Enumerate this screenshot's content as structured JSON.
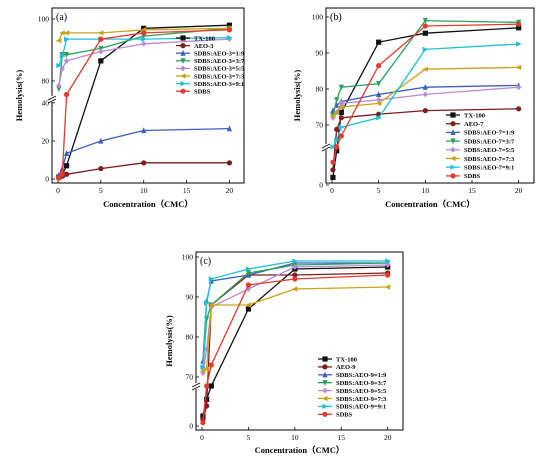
{
  "chart_data": [
    {
      "type": "line",
      "panel_label": "(a)",
      "xlabel": "Concentration（CMC）",
      "ylabel": "Hemolysis(%)",
      "xticks": [
        "0",
        "5",
        "10",
        "15",
        "20"
      ],
      "yticks": [
        "0",
        "20",
        "40",
        "80",
        "100"
      ],
      "ylim": [
        0,
        100
      ],
      "axis_break": [
        42,
        72
      ],
      "legend_position": "top-right",
      "x": [
        0.1,
        0.5,
        1,
        5,
        10,
        20
      ],
      "series": [
        {
          "name": "TX-100",
          "color": "#111111",
          "marker": "square",
          "values": [
            1,
            2,
            7,
            86.5,
            97,
            98
          ]
        },
        {
          "name": "AEO-3",
          "color": "#7a1e1e",
          "marker": "circle",
          "values": [
            1,
            1.5,
            2.5,
            5.5,
            8.5,
            8.5
          ]
        },
        {
          "name": "SDBS:AEO-3=1:9",
          "color": "#3a5fbf",
          "marker": "triangle-up",
          "values": [
            2,
            5.5,
            13.5,
            20,
            25.5,
            26.5
          ]
        },
        {
          "name": "SDBS:AEO-3=3:7",
          "color": "#2aa15a",
          "marker": "triangle-down",
          "values": [
            76.5,
            88.5,
            88.5,
            90.5,
            94.5,
            97
          ]
        },
        {
          "name": "SDBS:AEO-3=5:5",
          "color": "#b98ad8",
          "marker": "diamond",
          "values": [
            78,
            84,
            86.5,
            89.5,
            92,
            93.5
          ]
        },
        {
          "name": "SDBS:AEO-3=7:3",
          "color": "#c9a21a",
          "marker": "triangle-left",
          "values": [
            93,
            95.5,
            95.5,
            95.5,
            96.5,
            97
          ]
        },
        {
          "name": "SDBS:AEO-3=9:1",
          "color": "#1ec0d8",
          "marker": "triangle-right",
          "values": [
            85,
            88,
            93.5,
            93.5,
            93.5,
            94
          ]
        },
        {
          "name": "SDBS",
          "color": "#e23a2e",
          "marker": "circle",
          "values": [
            0.5,
            2.5,
            74,
            93.5,
            95.5,
            96.5
          ]
        }
      ]
    },
    {
      "type": "line",
      "panel_label": "(b)",
      "xlabel": "Concentration（CMC）",
      "ylabel": "Hemolysis(%)",
      "xticks": [
        "0",
        "5",
        "10",
        "15",
        "20"
      ],
      "yticks": [
        "0",
        "70",
        "80",
        "90",
        "100"
      ],
      "ylim": [
        0,
        100
      ],
      "axis_break": [
        5,
        65
      ],
      "legend_position": "bottom-right",
      "x": [
        0.1,
        0.5,
        1,
        5,
        10,
        20
      ],
      "series": [
        {
          "name": "TX-100",
          "color": "#111111",
          "marker": "square",
          "values": [
            1,
            4.5,
            73.5,
            93,
            95.5,
            97
          ]
        },
        {
          "name": "AEO-7",
          "color": "#7a1e1e",
          "marker": "circle",
          "values": [
            2,
            69,
            72,
            73,
            74,
            74.5
          ]
        },
        {
          "name": "SDBS:AEO-7=1:9",
          "color": "#3a5fbf",
          "marker": "triangle-up",
          "values": [
            74,
            75.5,
            76.5,
            78.5,
            80.5,
            81
          ]
        },
        {
          "name": "SDBS:AEO-7=3:7",
          "color": "#2aa15a",
          "marker": "triangle-down",
          "values": [
            72.5,
            77,
            80.5,
            81.5,
            99,
            98.5
          ]
        },
        {
          "name": "SDBS:AEO-7=5:5",
          "color": "#b98ad8",
          "marker": "diamond",
          "values": [
            72,
            73.5,
            76,
            77,
            78.5,
            80.5
          ]
        },
        {
          "name": "SDBS:AEO-7=7:3",
          "color": "#c9a21a",
          "marker": "triangle-left",
          "values": [
            72.5,
            73.5,
            75,
            76,
            85.5,
            86
          ]
        },
        {
          "name": "SDBS:AEO-7=9:1",
          "color": "#1ec0d8",
          "marker": "triangle-right",
          "values": [
            9,
            66.5,
            69.5,
            72,
            91,
            92.5
          ]
        },
        {
          "name": "SDBS",
          "color": "#e23a2e",
          "marker": "circle",
          "values": [
            3,
            5.5,
            67.5,
            86.5,
            97.5,
            98
          ]
        }
      ]
    },
    {
      "type": "line",
      "panel_label": "(c)",
      "xlabel": "Concentration（CMC）",
      "ylabel": "Hemolysis(%)",
      "xticks": [
        "0",
        "5",
        "10",
        "15",
        "20"
      ],
      "yticks": [
        "0",
        "70",
        "80",
        "90",
        "100"
      ],
      "ylim": [
        0,
        100
      ],
      "axis_break": [
        6,
        68
      ],
      "legend_position": "bottom-right",
      "x": [
        0.1,
        0.5,
        1,
        5,
        10,
        20
      ],
      "series": [
        {
          "name": "TX-100",
          "color": "#111111",
          "marker": "square",
          "values": [
            1.5,
            4,
            66.5,
            87,
            97,
            97.5
          ]
        },
        {
          "name": "AEO-9",
          "color": "#7a1e1e",
          "marker": "circle",
          "values": [
            1,
            3,
            88,
            95.5,
            95.5,
            96
          ]
        },
        {
          "name": "SDBS:AEO-9=1:9",
          "color": "#3a5fbf",
          "marker": "triangle-up",
          "values": [
            74,
            89,
            94,
            95.5,
            98.5,
            98.5
          ]
        },
        {
          "name": "SDBS:AEO-9=3:7",
          "color": "#2aa15a",
          "marker": "triangle-down",
          "values": [
            72,
            84.5,
            88,
            96,
            98,
            98.5
          ]
        },
        {
          "name": "SDBS:AEO-9=5:5",
          "color": "#b98ad8",
          "marker": "diamond",
          "values": [
            71,
            77,
            87.5,
            92,
            97.5,
            98
          ]
        },
        {
          "name": "SDBS:AEO-9=7:3",
          "color": "#c9a21a",
          "marker": "triangle-left",
          "values": [
            71.5,
            72,
            88,
            88,
            92,
            92.5
          ]
        },
        {
          "name": "SDBS:AEO-9=9:1",
          "color": "#1ec0d8",
          "marker": "triangle-right",
          "values": [
            72.5,
            88.5,
            94.5,
            97,
            99,
            99
          ]
        },
        {
          "name": "SDBS",
          "color": "#e23a2e",
          "marker": "circle",
          "values": [
            0.5,
            6,
            73,
            93,
            94.5,
            95.5
          ]
        }
      ]
    }
  ]
}
